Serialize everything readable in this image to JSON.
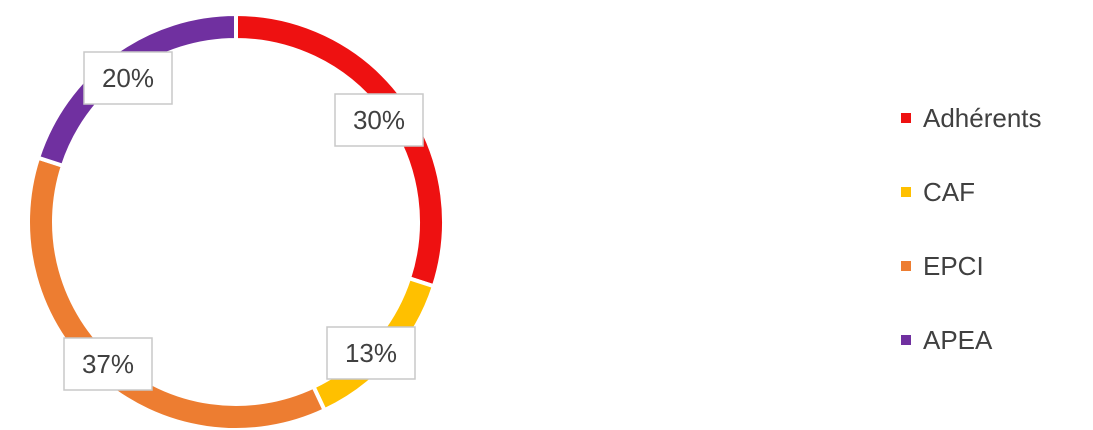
{
  "chart_data": {
    "type": "pie",
    "donut": true,
    "title": "",
    "legend_position": "right",
    "series": [
      {
        "categories": [
          "Adhérents",
          "CAF",
          "EPCI",
          "APEA"
        ],
        "values": [
          30,
          13,
          37,
          20
        ],
        "data_labels": [
          "30%",
          "13%",
          "37%",
          "20%"
        ],
        "colors": [
          "#ee1111",
          "#ffc000",
          "#ed7d31",
          "#7030a0"
        ]
      }
    ]
  }
}
